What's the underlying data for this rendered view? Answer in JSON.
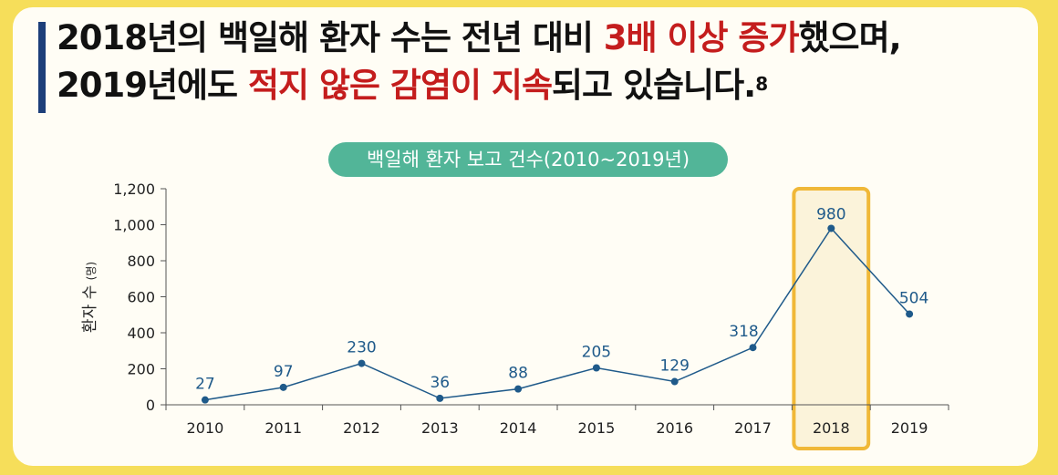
{
  "headline": {
    "line1_a": "2018년의 백일해 환자 수는 전년 대비 ",
    "line1_b": "3배 이상 증가",
    "line1_c": "했으며,",
    "line2_a": "2019년에도 ",
    "line2_b": "적지 않은 감염이 지속",
    "line2_c": "되고 있습니다.",
    "footnote": "8"
  },
  "colors": {
    "background": "#f6de5a",
    "highlight_text": "#c41d1d",
    "accent_bar": "#1d3f7a",
    "chart_title_bg": "#52b598",
    "line": "#1f5a8a",
    "highlight_box": "#f0b838"
  },
  "chart_data": {
    "type": "line",
    "title": "백일해 환자 보고 건수(2010~2019년)",
    "ylabel": "환자 수",
    "ylabel_unit": "(명)",
    "xlabel": "",
    "categories": [
      "2010",
      "2011",
      "2012",
      "2013",
      "2014",
      "2015",
      "2016",
      "2017",
      "2018",
      "2019"
    ],
    "values": [
      27,
      97,
      230,
      36,
      88,
      205,
      129,
      318,
      980,
      504
    ],
    "yticks": [
      "0",
      "200",
      "400",
      "600",
      "800",
      "1,000",
      "1,200"
    ],
    "ylim": [
      0,
      1200
    ],
    "grid": false,
    "legend": "none",
    "highlight_category": "2018"
  }
}
